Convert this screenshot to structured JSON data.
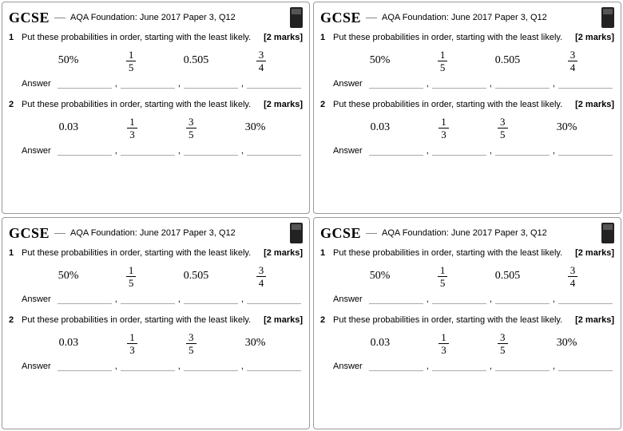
{
  "card": {
    "gcse_label": "GCSE",
    "source": "AQA Foundation: June 2017 Paper 3, Q12",
    "q1": {
      "num": "1",
      "text": "Put these probabilities in order, starting with the least likely.",
      "marks": "[2 marks]",
      "v1": "50%",
      "v2n": "1",
      "v2d": "5",
      "v3": "0.505",
      "v4n": "3",
      "v4d": "4",
      "answer_label": "Answer"
    },
    "q2": {
      "num": "2",
      "text": "Put these probabilities in order, starting with the least likely.",
      "marks": "[2 marks]",
      "v1": "0.03",
      "v2n": "1",
      "v2d": "3",
      "v3n": "3",
      "v3d": "5",
      "v4": "30%",
      "answer_label": "Answer"
    }
  }
}
